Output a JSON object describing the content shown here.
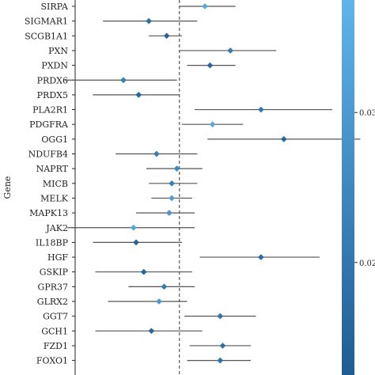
{
  "chart_data": {
    "type": "forest",
    "ylabel": "Gene",
    "reference_line": 1.0,
    "xlim": [
      0.6,
      1.6
    ],
    "genes": [
      {
        "name": "SIRPA",
        "or": 1.1,
        "lo": 1.0,
        "hi": 1.22,
        "p": 0.034
      },
      {
        "name": "SIGMAR1",
        "or": 0.88,
        "lo": 0.7,
        "hi": 1.07,
        "p": 0.018
      },
      {
        "name": "SCGB1A1",
        "or": 0.95,
        "lo": 0.88,
        "hi": 1.01,
        "p": 0.015
      },
      {
        "name": "PXN",
        "or": 1.2,
        "lo": 1.0,
        "hi": 1.38,
        "p": 0.022
      },
      {
        "name": "PXDN",
        "or": 1.12,
        "lo": 1.03,
        "hi": 1.22,
        "p": 0.016
      },
      {
        "name": "PRDX6",
        "or": 0.78,
        "lo": 0.55,
        "hi": 0.99,
        "p": 0.022
      },
      {
        "name": "PRDX5",
        "or": 0.84,
        "lo": 0.66,
        "hi": 1.0,
        "p": 0.016
      },
      {
        "name": "PLA2R1",
        "or": 1.32,
        "lo": 1.06,
        "hi": 1.6,
        "p": 0.021
      },
      {
        "name": "PDGFRA",
        "or": 1.13,
        "lo": 1.01,
        "hi": 1.25,
        "p": 0.034
      },
      {
        "name": "OGG1",
        "or": 1.41,
        "lo": 1.11,
        "hi": 1.71,
        "p": 0.015
      },
      {
        "name": "NDUFB4",
        "or": 0.91,
        "lo": 0.75,
        "hi": 1.07,
        "p": 0.022
      },
      {
        "name": "NAPRT",
        "or": 0.99,
        "lo": 0.87,
        "hi": 1.09,
        "p": 0.025
      },
      {
        "name": "MICB",
        "or": 0.97,
        "lo": 0.88,
        "hi": 1.07,
        "p": 0.022
      },
      {
        "name": "MELK",
        "or": 0.97,
        "lo": 0.89,
        "hi": 1.05,
        "p": 0.031
      },
      {
        "name": "MAPK13",
        "or": 0.96,
        "lo": 0.83,
        "hi": 1.06,
        "p": 0.029
      },
      {
        "name": "JAK2",
        "or": 0.82,
        "lo": 0.56,
        "hi": 1.06,
        "p": 0.033
      },
      {
        "name": "IL18BP",
        "or": 0.83,
        "lo": 0.66,
        "hi": 1.01,
        "p": 0.015
      },
      {
        "name": "HGF",
        "or": 1.32,
        "lo": 1.08,
        "hi": 1.55,
        "p": 0.017
      },
      {
        "name": "GSKIP",
        "or": 0.86,
        "lo": 0.67,
        "hi": 1.05,
        "p": 0.015
      },
      {
        "name": "GPR37",
        "or": 0.94,
        "lo": 0.8,
        "hi": 1.06,
        "p": 0.021
      },
      {
        "name": "GLRX2",
        "or": 0.92,
        "lo": 0.72,
        "hi": 1.03,
        "p": 0.03
      },
      {
        "name": "GGT7",
        "or": 1.16,
        "lo": 1.02,
        "hi": 1.3,
        "p": 0.019
      },
      {
        "name": "GCH1",
        "or": 0.89,
        "lo": 0.67,
        "hi": 1.09,
        "p": 0.016
      },
      {
        "name": "FZD1",
        "or": 1.17,
        "lo": 1.04,
        "hi": 1.28,
        "p": 0.018
      },
      {
        "name": "FOXO1",
        "or": 1.16,
        "lo": 1.03,
        "hi": 1.28,
        "p": 0.019
      }
    ],
    "colorbar": {
      "tick_labels": [
        "0.03",
        "0.02"
      ],
      "tick_values": [
        0.03,
        0.02
      ],
      "range": [
        0.0125,
        0.0375
      ],
      "color_low": "#1f5c93",
      "color_high": "#5fb4ea"
    }
  }
}
